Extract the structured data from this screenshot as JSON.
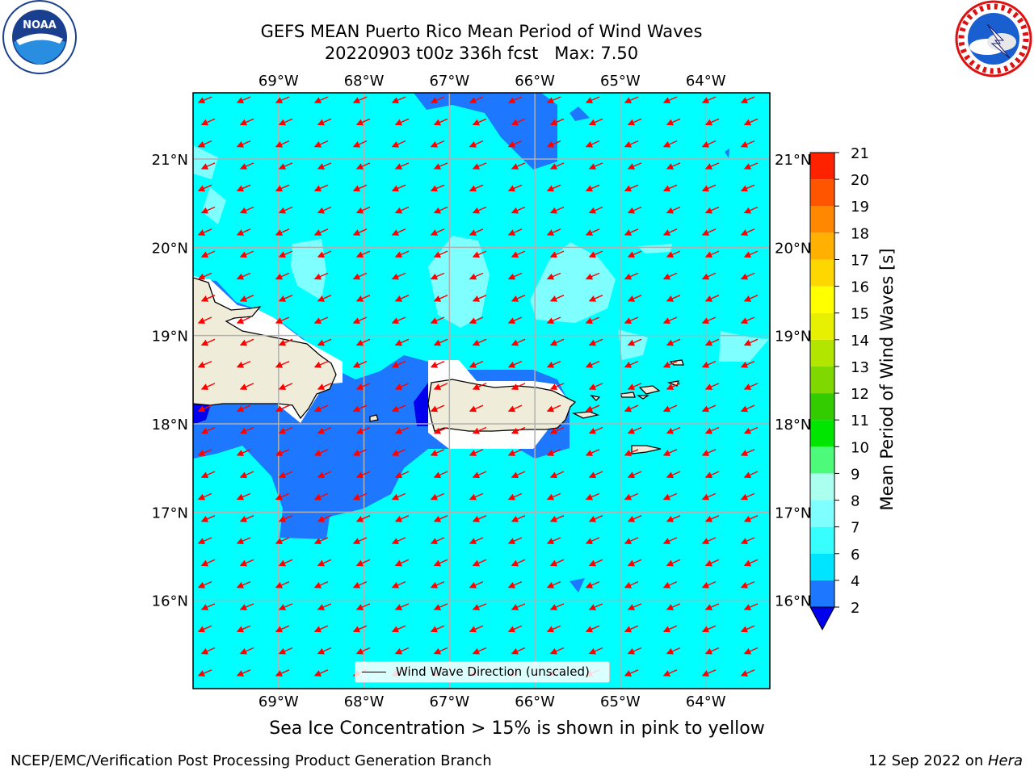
{
  "title": {
    "line1": "GEFS MEAN Puerto Rico Mean Period of Wind Waves",
    "line2": "20220903 t00z 336h fcst   Max: 7.50"
  },
  "logos": {
    "left": {
      "text": "NOAA",
      "ring_text": "NATIONAL OCEANIC AND ATMOSPHERIC ADMINISTRATION · U.S. DEPARTMENT OF COMMERCE"
    },
    "right": {
      "ring_text": "NATIONAL WEATHER SERVICE"
    }
  },
  "map": {
    "lon_labels": [
      "69°W",
      "68°W",
      "67°W",
      "66°W",
      "65°W",
      "64°W"
    ],
    "lat_labels": [
      "21°N",
      "20°N",
      "19°N",
      "18°N",
      "17°N",
      "16°N"
    ],
    "lon_values": [
      -69,
      -68,
      -67,
      -66,
      -65,
      -64
    ],
    "lat_values": [
      21,
      20,
      19,
      18,
      17,
      16
    ],
    "extent": {
      "lon_min": -70.0,
      "lon_max": -63.25,
      "lat_min": 15.0,
      "lat_max": 21.75
    },
    "ocean_color": "#00ffff",
    "land_color": "#efedda",
    "arrow_color": "#ff0000",
    "arrow_direction": "toward southwest (easterly wind waves)"
  },
  "legend": {
    "label": "Wind Wave Direction (unscaled)"
  },
  "colorbar": {
    "title": "Mean Period of Wind Waves [s]",
    "ticks": [
      "21",
      "20",
      "19",
      "18",
      "17",
      "16",
      "15",
      "14",
      "13",
      "12",
      "11",
      "10",
      "9",
      "8",
      "7",
      "6",
      "4",
      "2"
    ],
    "levels": [
      2,
      4,
      6,
      7,
      8,
      9,
      10,
      11,
      12,
      13,
      14,
      15,
      16,
      17,
      18,
      19,
      20,
      21
    ],
    "colors": [
      "#1e78ff",
      "#00e5ff",
      "#38ffff",
      "#7fffff",
      "#aaffee",
      "#4dfa7a",
      "#00e600",
      "#33cc00",
      "#7fd900",
      "#b2e600",
      "#e6f000",
      "#ffff00",
      "#ffd700",
      "#ffb000",
      "#ff8800",
      "#ff5500",
      "#ff2200"
    ],
    "under_color": "#0000ee"
  },
  "note": "Sea Ice Concentration > 15% is shown in pink to yellow",
  "footer": {
    "left": "NCEP/EMC/Verification Post Processing Product Generation Branch",
    "right_date": "12 Sep 2022 on ",
    "right_host": "Hera"
  }
}
